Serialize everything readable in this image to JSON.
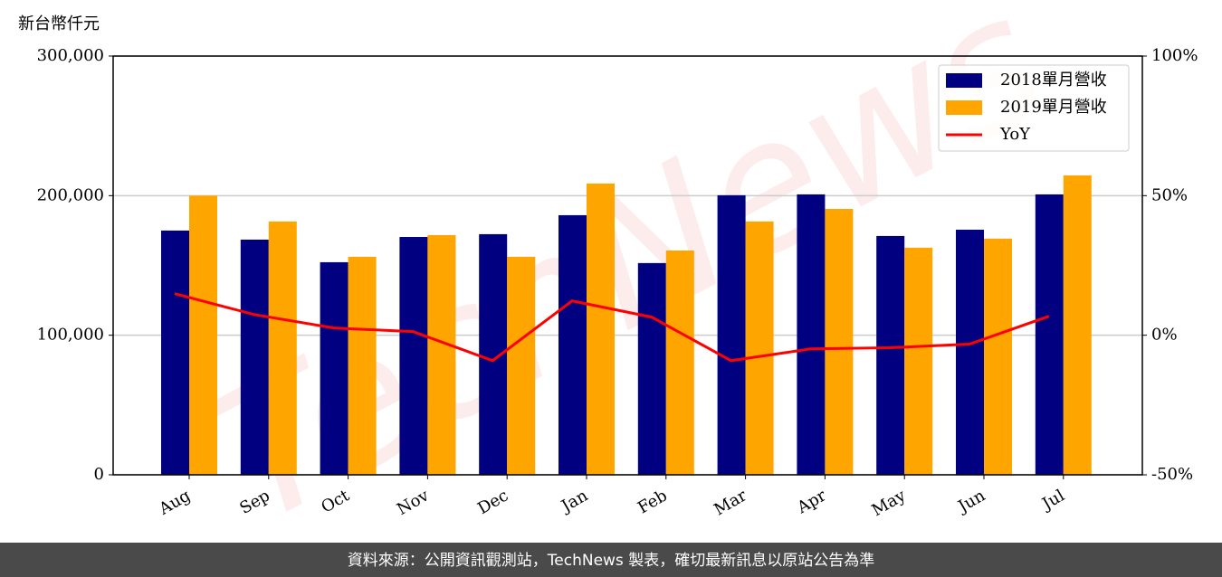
{
  "chart_data": {
    "type": "bar",
    "y_unit_label": "新台幣仟元",
    "watermark": "TechNews",
    "categories": [
      "Aug",
      "Sep",
      "Oct",
      "Nov",
      "Dec",
      "Jan",
      "Feb",
      "Mar",
      "Apr",
      "May",
      "Jun",
      "Jul"
    ],
    "series": [
      {
        "name": "2018單月營收",
        "color": "#000080",
        "values": [
          175000,
          168500,
          152300,
          170400,
          172400,
          186000,
          151700,
          200300,
          200900,
          171100,
          175600,
          200900
        ]
      },
      {
        "name": "2019單月營收",
        "color": "#ffa500",
        "values": [
          200000,
          181500,
          156200,
          171700,
          156200,
          208700,
          160700,
          181500,
          190500,
          162700,
          169200,
          214500
        ]
      },
      {
        "name": "YoY",
        "type": "line",
        "axis": "y2",
        "color": "#ff0000",
        "values": [
          14.9,
          7.4,
          2.6,
          1.3,
          -9.1,
          12.3,
          6.5,
          -9.1,
          -4.9,
          -4.5,
          -3.2,
          6.8
        ]
      }
    ],
    "ylim": [
      0,
      300000
    ],
    "yticks": [
      0,
      {
        "value": 100000,
        "label": "100,000"
      },
      {
        "value": 200000,
        "label": "200,000"
      },
      {
        "value": 300000,
        "label": "300,000"
      }
    ],
    "y2lim": [
      -50,
      100
    ],
    "y2ticks": [
      {
        "value": -50,
        "label": "-50%"
      },
      {
        "value": 0,
        "label": "0%"
      },
      {
        "value": 50,
        "label": "50%"
      },
      {
        "value": 100,
        "label": "100%"
      }
    ],
    "grid": true,
    "legend": "upper right",
    "footer": "資料來源：公開資訊觀測站，TechNews 製表，確切最新訊息以原站公告為準"
  }
}
